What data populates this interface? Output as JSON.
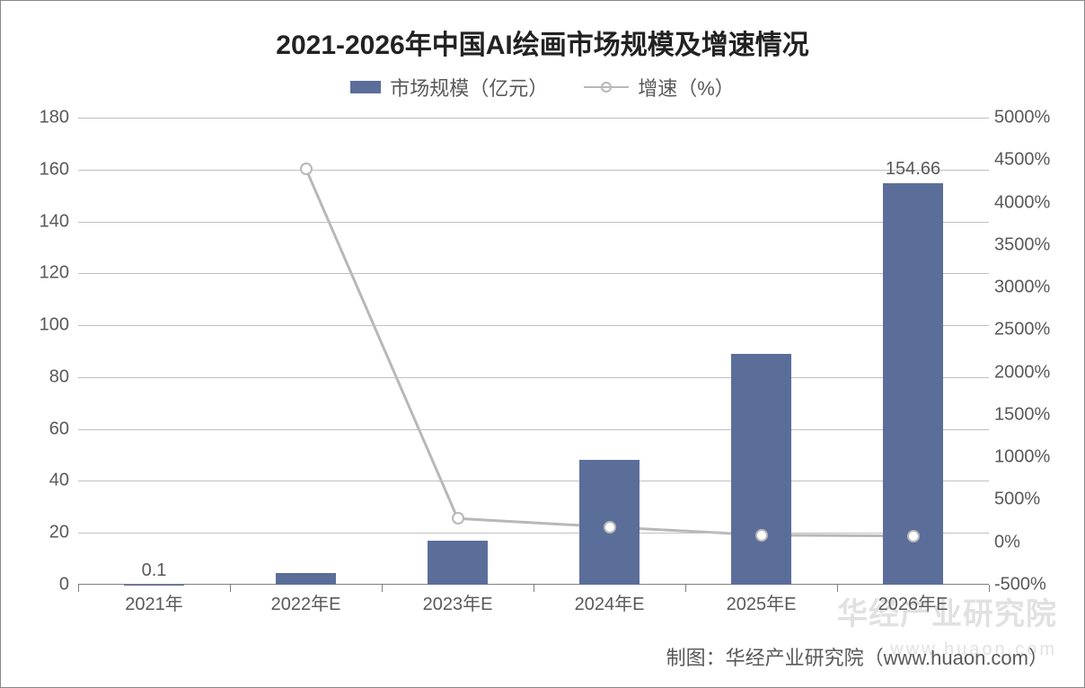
{
  "chart": {
    "type": "bar+line",
    "title": "2021-2026年中国AI绘画市场规模及增速情况",
    "title_fontsize": 30,
    "title_color": "#222222",
    "background_color": "#ffffff",
    "plot_border_color": "#888888",
    "grid_color": "#c0c0c0",
    "axis_label_color": "#595959",
    "axis_label_fontsize": 20,
    "legend": {
      "bar_label": "市场规模（亿元）",
      "line_label": "增速（%）",
      "fontsize": 22,
      "color": "#595959"
    },
    "categories": [
      "2021年",
      "2022年E",
      "2023年E",
      "2024年E",
      "2025年E",
      "2026年E"
    ],
    "bar_series": {
      "name": "市场规模（亿元）",
      "values": [
        0.1,
        4.5,
        17,
        48,
        89,
        154.66
      ],
      "color": "#5b6e9a",
      "bar_width_ratio": 0.4,
      "data_labels": {
        "0": "0.1",
        "5": "154.66"
      },
      "label_fontsize": 20,
      "label_color": "#595959"
    },
    "line_series": {
      "name": "增速（%）",
      "values": [
        null,
        4400,
        280,
        180,
        85,
        74
      ],
      "color": "#b8b8b8",
      "line_width": 3,
      "marker_style": "circle",
      "marker_size": 14,
      "marker_border_width": 2,
      "marker_fill": "#ffffff"
    },
    "y1_axis": {
      "min": 0,
      "max": 180,
      "step": 20,
      "labels": [
        "0",
        "20",
        "40",
        "60",
        "80",
        "100",
        "120",
        "140",
        "160",
        "180"
      ]
    },
    "y2_axis": {
      "min": -500,
      "max": 5000,
      "step": 500,
      "labels": [
        "-500%",
        "0%",
        "500%",
        "1000%",
        "1500%",
        "2000%",
        "2500%",
        "3000%",
        "3500%",
        "4000%",
        "4500%",
        "5000%"
      ]
    },
    "footer_text": "制图：华经产业研究院（www.huaon.com）",
    "footer_fontsize": 22,
    "footer_color": "#595959",
    "watermark_main": "华经产业研究院",
    "watermark_sub": "www.huaon.com"
  }
}
